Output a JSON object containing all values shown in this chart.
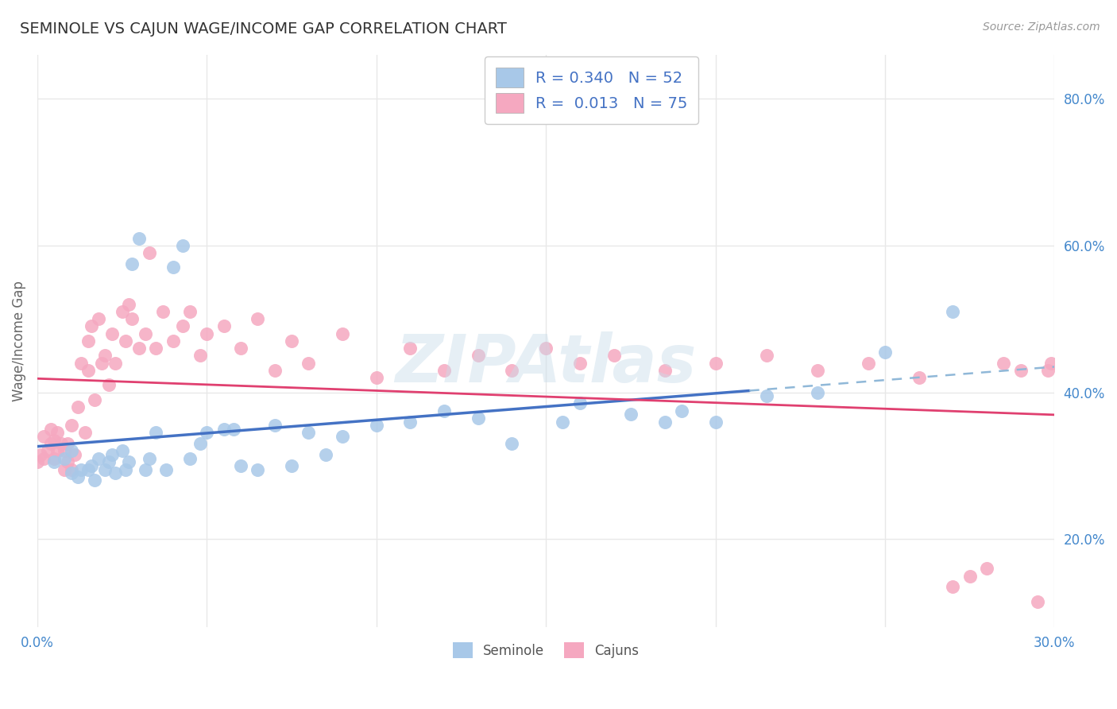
{
  "title": "SEMINOLE VS CAJUN WAGE/INCOME GAP CORRELATION CHART",
  "source_text": "Source: ZipAtlas.com",
  "ylabel": "Wage/Income Gap",
  "watermark": "ZIPAtlas",
  "seminole_R": "0.340",
  "seminole_N": "52",
  "cajun_R": "0.013",
  "cajun_N": "75",
  "seminole_color": "#a8c8e8",
  "cajun_color": "#f5a8c0",
  "trendline_seminole_color": "#4472c4",
  "trendline_cajun_color": "#e04070",
  "dashed_color": "#90b8d8",
  "xlim_min": 0.0,
  "xlim_max": 0.3,
  "ylim_min": 0.08,
  "ylim_max": 0.86,
  "x_ticks": [
    0.0,
    0.05,
    0.1,
    0.15,
    0.2,
    0.25,
    0.3
  ],
  "y_ticks_right": [
    0.2,
    0.4,
    0.6,
    0.8
  ],
  "y_tick_labels_right": [
    "20.0%",
    "40.0%",
    "60.0%",
    "80.0%"
  ],
  "background_color": "#ffffff",
  "title_color": "#333333",
  "title_fontsize": 14,
  "axis_label_color": "#666666",
  "tick_color": "#4488cc",
  "grid_color": "#e8e8e8",
  "legend_color": "#4472c4",
  "bottom_legend_labels": [
    "Seminole",
    "Cajuns"
  ],
  "seminole_x": [
    0.005,
    0.008,
    0.01,
    0.01,
    0.012,
    0.013,
    0.015,
    0.016,
    0.017,
    0.018,
    0.02,
    0.021,
    0.022,
    0.023,
    0.025,
    0.026,
    0.027,
    0.028,
    0.03,
    0.032,
    0.033,
    0.035,
    0.038,
    0.04,
    0.043,
    0.045,
    0.048,
    0.05,
    0.055,
    0.058,
    0.06,
    0.065,
    0.07,
    0.075,
    0.08,
    0.085,
    0.09,
    0.1,
    0.11,
    0.12,
    0.13,
    0.14,
    0.155,
    0.16,
    0.175,
    0.185,
    0.19,
    0.2,
    0.215,
    0.23,
    0.25,
    0.27
  ],
  "seminole_y": [
    0.305,
    0.31,
    0.29,
    0.32,
    0.285,
    0.295,
    0.295,
    0.3,
    0.28,
    0.31,
    0.295,
    0.305,
    0.315,
    0.29,
    0.32,
    0.295,
    0.305,
    0.575,
    0.61,
    0.295,
    0.31,
    0.345,
    0.295,
    0.57,
    0.6,
    0.31,
    0.33,
    0.345,
    0.35,
    0.35,
    0.3,
    0.295,
    0.355,
    0.3,
    0.345,
    0.315,
    0.34,
    0.355,
    0.36,
    0.375,
    0.365,
    0.33,
    0.36,
    0.385,
    0.37,
    0.36,
    0.375,
    0.36,
    0.395,
    0.4,
    0.455,
    0.51
  ],
  "cajun_x": [
    0.0,
    0.001,
    0.002,
    0.002,
    0.003,
    0.004,
    0.004,
    0.005,
    0.005,
    0.006,
    0.006,
    0.007,
    0.008,
    0.008,
    0.009,
    0.009,
    0.01,
    0.01,
    0.011,
    0.012,
    0.013,
    0.014,
    0.015,
    0.015,
    0.016,
    0.017,
    0.018,
    0.019,
    0.02,
    0.021,
    0.022,
    0.023,
    0.025,
    0.026,
    0.027,
    0.028,
    0.03,
    0.032,
    0.033,
    0.035,
    0.037,
    0.04,
    0.043,
    0.045,
    0.048,
    0.05,
    0.055,
    0.06,
    0.065,
    0.07,
    0.075,
    0.08,
    0.09,
    0.1,
    0.11,
    0.12,
    0.13,
    0.14,
    0.15,
    0.16,
    0.17,
    0.185,
    0.2,
    0.215,
    0.23,
    0.245,
    0.26,
    0.27,
    0.275,
    0.28,
    0.285,
    0.29,
    0.295,
    0.298,
    0.299
  ],
  "cajun_y": [
    0.305,
    0.315,
    0.31,
    0.34,
    0.32,
    0.33,
    0.35,
    0.31,
    0.335,
    0.32,
    0.345,
    0.33,
    0.295,
    0.32,
    0.305,
    0.33,
    0.295,
    0.355,
    0.315,
    0.38,
    0.44,
    0.345,
    0.47,
    0.43,
    0.49,
    0.39,
    0.5,
    0.44,
    0.45,
    0.41,
    0.48,
    0.44,
    0.51,
    0.47,
    0.52,
    0.5,
    0.46,
    0.48,
    0.59,
    0.46,
    0.51,
    0.47,
    0.49,
    0.51,
    0.45,
    0.48,
    0.49,
    0.46,
    0.5,
    0.43,
    0.47,
    0.44,
    0.48,
    0.42,
    0.46,
    0.43,
    0.45,
    0.43,
    0.46,
    0.44,
    0.45,
    0.43,
    0.44,
    0.45,
    0.43,
    0.44,
    0.42,
    0.135,
    0.15,
    0.16,
    0.44,
    0.43,
    0.115,
    0.43,
    0.44
  ]
}
